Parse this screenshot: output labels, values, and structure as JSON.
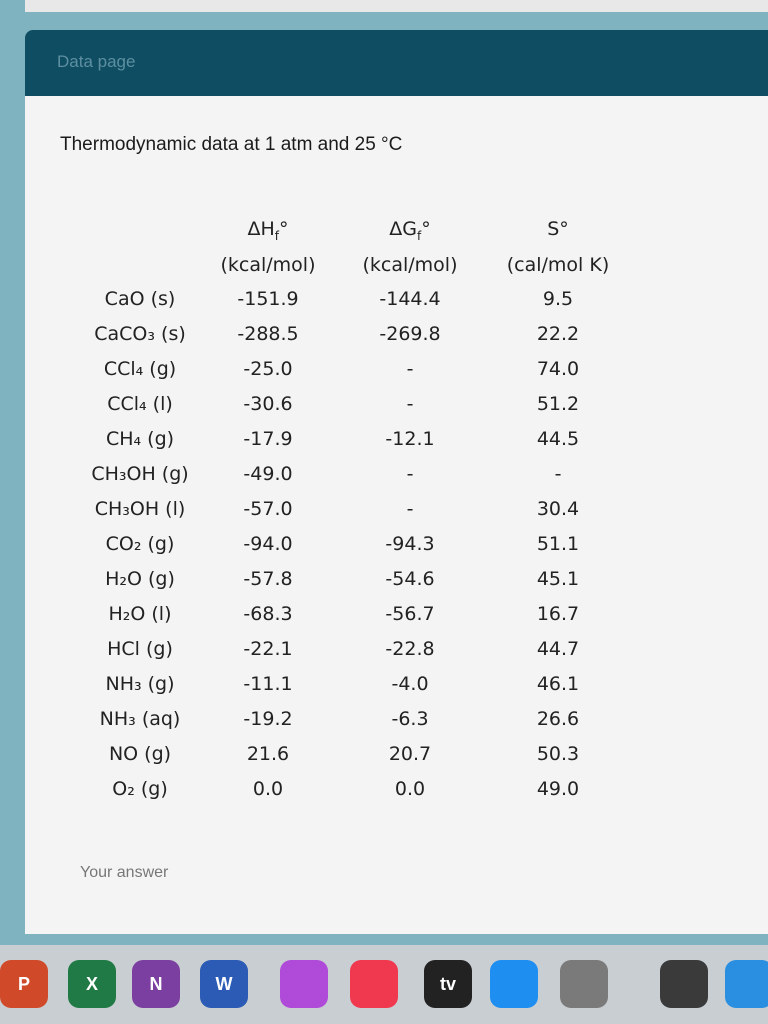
{
  "header": {
    "title": "Data page"
  },
  "table": {
    "caption": "Thermodynamic data at 1 atm and 25 °C",
    "columns": [
      {
        "symbol": "ΔH",
        "sub": "f",
        "sup": "°",
        "unit": "(kcal/mol)"
      },
      {
        "symbol": "ΔG",
        "sub": "f",
        "sup": "°",
        "unit": "(kcal/mol)"
      },
      {
        "symbol": "S°",
        "unit": "(cal/mol K)"
      }
    ],
    "rows": [
      [
        "CaO (s)",
        "-151.9",
        "-144.4",
        "9.5"
      ],
      [
        "CaCO₃ (s)",
        "-288.5",
        "-269.8",
        "22.2"
      ],
      [
        "CCl₄ (g)",
        "-25.0",
        "-",
        "74.0"
      ],
      [
        "CCl₄ (l)",
        "-30.6",
        "-",
        "51.2"
      ],
      [
        "CH₄ (g)",
        "-17.9",
        "-12.1",
        "44.5"
      ],
      [
        "CH₃OH (g)",
        "-49.0",
        "-",
        "-"
      ],
      [
        "CH₃OH (l)",
        "-57.0",
        "-",
        "30.4"
      ],
      [
        "CO₂ (g)",
        "-94.0",
        "-94.3",
        "51.1"
      ],
      [
        "H₂O (g)",
        "-57.8",
        "-54.6",
        "45.1"
      ],
      [
        "H₂O (l)",
        "-68.3",
        "-56.7",
        "16.7"
      ],
      [
        "HCl (g)",
        "-22.1",
        "-22.8",
        "44.7"
      ],
      [
        "NH₃ (g)",
        "-11.1",
        "-4.0",
        "46.1"
      ],
      [
        "NH₃ (aq)",
        "-19.2",
        "-6.3",
        "26.6"
      ],
      [
        "NO (g)",
        "21.6",
        "20.7",
        "50.3"
      ],
      [
        "O₂ (g)",
        "0.0",
        "0.0",
        "49.0"
      ]
    ]
  },
  "form": {
    "answer_placeholder": "Your answer"
  },
  "dock": {
    "labels": [
      "P",
      "X",
      "N",
      "W",
      "tv"
    ]
  }
}
